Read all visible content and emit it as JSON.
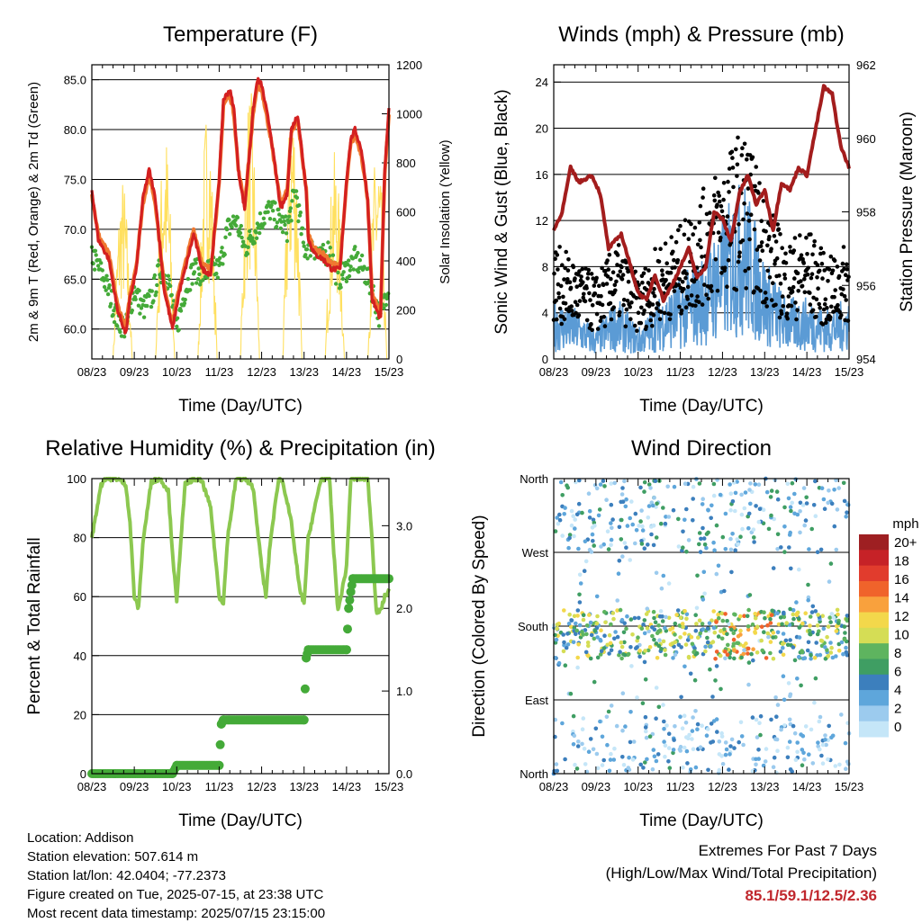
{
  "x_ticks": [
    "08/23",
    "09/23",
    "10/23",
    "11/23",
    "12/23",
    "13/23",
    "14/23",
    "15/23"
  ],
  "chart_data": [
    {
      "type": "line",
      "title": "Temperature (F)",
      "xlabel": "Time (Day/UTC)",
      "ylabel": "2m & 9m T (Red, Orange) & 2m Td (Green)",
      "ylabel_right": "Solar Insolation (Yellow)",
      "ylim": [
        57,
        86.5
      ],
      "y_ticks": [
        "60.0",
        "65.0",
        "70.0",
        "75.0",
        "80.0",
        "85.0"
      ],
      "ylim_right": [
        0,
        1200
      ],
      "y_ticks_right": [
        "0",
        "200",
        "400",
        "600",
        "800",
        "1000",
        "1200"
      ],
      "series": [
        {
          "color": "#d42020",
          "style": "line",
          "x": [
            0,
            0.15,
            0.4,
            0.6,
            0.8,
            0.9,
            1.05,
            1.2,
            1.35,
            1.5,
            1.7,
            1.9,
            2.05,
            2.2,
            2.4,
            2.6,
            2.8,
            3.0,
            3.1,
            3.25,
            3.35,
            3.45,
            3.6,
            3.8,
            3.9,
            4.0,
            4.2,
            4.45,
            4.6,
            4.7,
            4.85,
            5.05,
            5.1,
            5.25,
            5.45,
            5.65,
            5.85,
            6.0,
            6.1,
            6.2,
            6.35,
            6.5,
            6.6,
            6.8,
            6.9,
            7.0
          ],
          "y": [
            74,
            69,
            67,
            62,
            59.5,
            63,
            66,
            73,
            76,
            73,
            64,
            60,
            63.5,
            66,
            69.5,
            66,
            65.5,
            75,
            83,
            84,
            82,
            76,
            72,
            82,
            85,
            84.5,
            80,
            72,
            73.5,
            80,
            81.5,
            74,
            69,
            67.5,
            67,
            66,
            66,
            75,
            79,
            80,
            78,
            73,
            63,
            61,
            76,
            82
          ]
        },
        {
          "color": "#f07830",
          "style": "line",
          "x": [
            0,
            0.15,
            0.4,
            0.6,
            0.8,
            0.9,
            1.05,
            1.2,
            1.35,
            1.5,
            1.7,
            1.9,
            2.05,
            2.2,
            2.4,
            2.6,
            2.8,
            3.0,
            3.1,
            3.25,
            3.35,
            3.45,
            3.6,
            3.8,
            3.9,
            4.0,
            4.2,
            4.45,
            4.6,
            4.7,
            4.85,
            5.05,
            5.1,
            5.25,
            5.45,
            5.65,
            5.85,
            6.0,
            6.1,
            6.2,
            6.35,
            6.5,
            6.6,
            6.8,
            6.9,
            7.0
          ],
          "y": [
            73.5,
            69.5,
            67.5,
            62.5,
            60,
            63.5,
            66.5,
            72.5,
            75.5,
            72.5,
            64.5,
            60.5,
            64,
            66.5,
            70,
            66.5,
            66,
            74.5,
            82.5,
            83.5,
            81.5,
            76,
            72.5,
            81.5,
            84.5,
            84,
            79.5,
            72.5,
            74,
            79.5,
            81,
            74,
            69.5,
            68,
            67.5,
            66.5,
            66.5,
            74.5,
            78.5,
            79.5,
            77.5,
            73,
            63.5,
            61.5,
            75.5,
            81.5
          ]
        },
        {
          "color": "#44aa38",
          "style": "dots",
          "x": [
            0,
            0.3,
            0.6,
            0.8,
            1.0,
            1.2,
            1.4,
            1.6,
            1.8,
            2.0,
            2.2,
            2.4,
            2.6,
            2.8,
            3.0,
            3.2,
            3.4,
            3.6,
            3.8,
            4.0,
            4.2,
            4.4,
            4.6,
            4.8,
            5.0,
            5.2,
            5.4,
            5.6,
            5.8,
            6.0,
            6.2,
            6.4,
            6.6,
            6.8,
            7.0
          ],
          "y": [
            67.5,
            65,
            61,
            60,
            64,
            62,
            63,
            66,
            65,
            60,
            64,
            66,
            65.5,
            66,
            66,
            70,
            71,
            68,
            69.5,
            71,
            72,
            71,
            70,
            74,
            68,
            68.5,
            67,
            68,
            65,
            66,
            67,
            66,
            64,
            61,
            65
          ]
        },
        {
          "color": "#ffe060",
          "style": "insolation",
          "units": "W/m2",
          "daily_peaks": [
            750,
            950,
            1050,
            1120,
            1100,
            850,
            900,
            1000
          ]
        }
      ]
    },
    {
      "type": "line",
      "title": "Winds (mph) & Pressure (mb)",
      "xlabel": "Time (Day/UTC)",
      "ylabel": "Sonic Wind & Gust (Blue, Black)",
      "ylabel_right": "Station Pressure (Maroon)",
      "ylim": [
        0,
        25.5
      ],
      "y_ticks": [
        "0",
        "4",
        "8",
        "12",
        "16",
        "20",
        "24"
      ],
      "ylim_right": [
        954,
        962
      ],
      "y_ticks_right": [
        "954",
        "956",
        "958",
        "960",
        "962"
      ],
      "series": [
        {
          "color": "#5b9bd5",
          "style": "band",
          "x": [
            0,
            0.5,
            1,
            1.5,
            2,
            2.5,
            3,
            3.5,
            4,
            4.5,
            5,
            5.5,
            6,
            6.5,
            7
          ],
          "y": [
            3,
            2.5,
            1.5,
            3,
            1.5,
            3,
            4,
            5,
            7,
            9,
            5,
            3,
            3,
            2.5,
            3
          ]
        },
        {
          "color": "#000000",
          "style": "dots",
          "x": [
            0,
            0.5,
            1,
            1.5,
            2,
            2.5,
            3,
            3.5,
            4,
            4.5,
            5,
            5.5,
            6,
            6.5,
            7
          ],
          "y": [
            7,
            6,
            5,
            7,
            5,
            7,
            8,
            10,
            12,
            14,
            10,
            7,
            8,
            6,
            7
          ]
        },
        {
          "color": "#a31d1d",
          "style": "line",
          "x": [
            0,
            0.2,
            0.4,
            0.6,
            0.9,
            1.1,
            1.3,
            1.6,
            1.8,
            2.0,
            2.2,
            2.4,
            2.6,
            2.8,
            3.0,
            3.2,
            3.4,
            3.6,
            3.8,
            4.0,
            4.2,
            4.4,
            4.6,
            4.8,
            5.0,
            5.2,
            5.4,
            5.6,
            5.8,
            6.0,
            6.2,
            6.4,
            6.6,
            6.8,
            7.0
          ],
          "y": [
            957.5,
            958,
            959.2,
            958.8,
            959,
            958.5,
            957,
            957.4,
            956.6,
            955.8,
            955.6,
            956.3,
            955.6,
            956,
            956.5,
            957,
            956.2,
            956.5,
            958,
            957.8,
            957.2,
            958.5,
            959,
            958.2,
            958.6,
            957.5,
            958.8,
            958.6,
            959.2,
            959,
            960.2,
            961.4,
            961.2,
            959.8,
            959.2
          ]
        }
      ]
    },
    {
      "type": "line",
      "title": "Relative Humidity (%) & Precipitation (in)",
      "xlabel": "Time (Day/UTC)",
      "ylabel": "Percent & Total Rainfall",
      "ylim": [
        0,
        100
      ],
      "y_ticks": [
        "0",
        "20",
        "40",
        "60",
        "80",
        "100"
      ],
      "ylim_right": [
        0,
        3.57
      ],
      "y_ticks_right": [
        "0.0",
        "1.0",
        "2.0",
        "3.0"
      ],
      "series": [
        {
          "color": "#8cc850",
          "style": "line",
          "x": [
            0,
            0.1,
            0.2,
            0.3,
            0.6,
            0.8,
            0.9,
            1.0,
            1.1,
            1.2,
            1.4,
            1.6,
            1.8,
            1.9,
            2.0,
            2.1,
            2.2,
            2.4,
            2.6,
            2.8,
            3.0,
            3.1,
            3.2,
            3.4,
            3.6,
            3.8,
            4.0,
            4.1,
            4.2,
            4.4,
            4.5,
            4.7,
            4.9,
            5.0,
            5.1,
            5.4,
            5.6,
            5.7,
            5.8,
            6.0,
            6.1,
            6.3,
            6.5,
            6.6,
            6.7,
            6.8,
            6.9,
            7.0
          ],
          "y": [
            80,
            88,
            97,
            100,
            100,
            98,
            85,
            60,
            56,
            78,
            99,
            100,
            96,
            75,
            58,
            80,
            98,
            100,
            99,
            90,
            60,
            58,
            80,
            100,
            100,
            97,
            70,
            60,
            78,
            100,
            99,
            85,
            62,
            58,
            80,
            100,
            100,
            75,
            55,
            70,
            100,
            100,
            100,
            80,
            55,
            55,
            60,
            62
          ]
        },
        {
          "color": "#44aa38",
          "style": "dots",
          "x": [
            0,
            1.9,
            2.0,
            3.0,
            3.05,
            3.1,
            5.0,
            5.05,
            5.1,
            6.0,
            6.05,
            6.1,
            6.15,
            7.0
          ],
          "y": [
            0,
            0,
            0.1,
            0.1,
            0.6,
            0.65,
            0.65,
            1.4,
            1.5,
            1.5,
            2.0,
            2.2,
            2.36,
            2.36
          ]
        }
      ]
    },
    {
      "type": "scatter",
      "title": "Wind Direction",
      "xlabel": "Time (Day/UTC)",
      "ylabel": "Direction (Colored By Speed)",
      "y_ticks": [
        "North",
        "East",
        "South",
        "West",
        "North"
      ],
      "colorbar": {
        "title": "mph",
        "labels": [
          "20+",
          "18",
          "16",
          "14",
          "12",
          "10",
          "8",
          "6",
          "4",
          "2",
          "0"
        ],
        "colors": [
          "#9e1f22",
          "#c62227",
          "#e13c2d",
          "#f0632b",
          "#f9a13d",
          "#f3d84b",
          "#d5dd55",
          "#5eb45f",
          "#3f9e63",
          "#3c7fbd",
          "#5ea6db",
          "#9ccbee",
          "#c5e6f8"
        ]
      }
    }
  ],
  "info": {
    "location": "Location: Addison",
    "elevation": "Station elevation: 507.614 m",
    "latlon": "Station lat/lon: 42.0404; -77.2373",
    "created": "Figure created on Tue, 2025-07-15, at 23:38 UTC",
    "timestamp": "Most recent data timestamp: 2025/07/15 23:15:00"
  },
  "extremes": {
    "line1": "Extremes For Past 7 Days",
    "line2": "(High/Low/Max Wind/Total Precipitation)",
    "values": "85.1/59.1/12.5/2.36"
  }
}
